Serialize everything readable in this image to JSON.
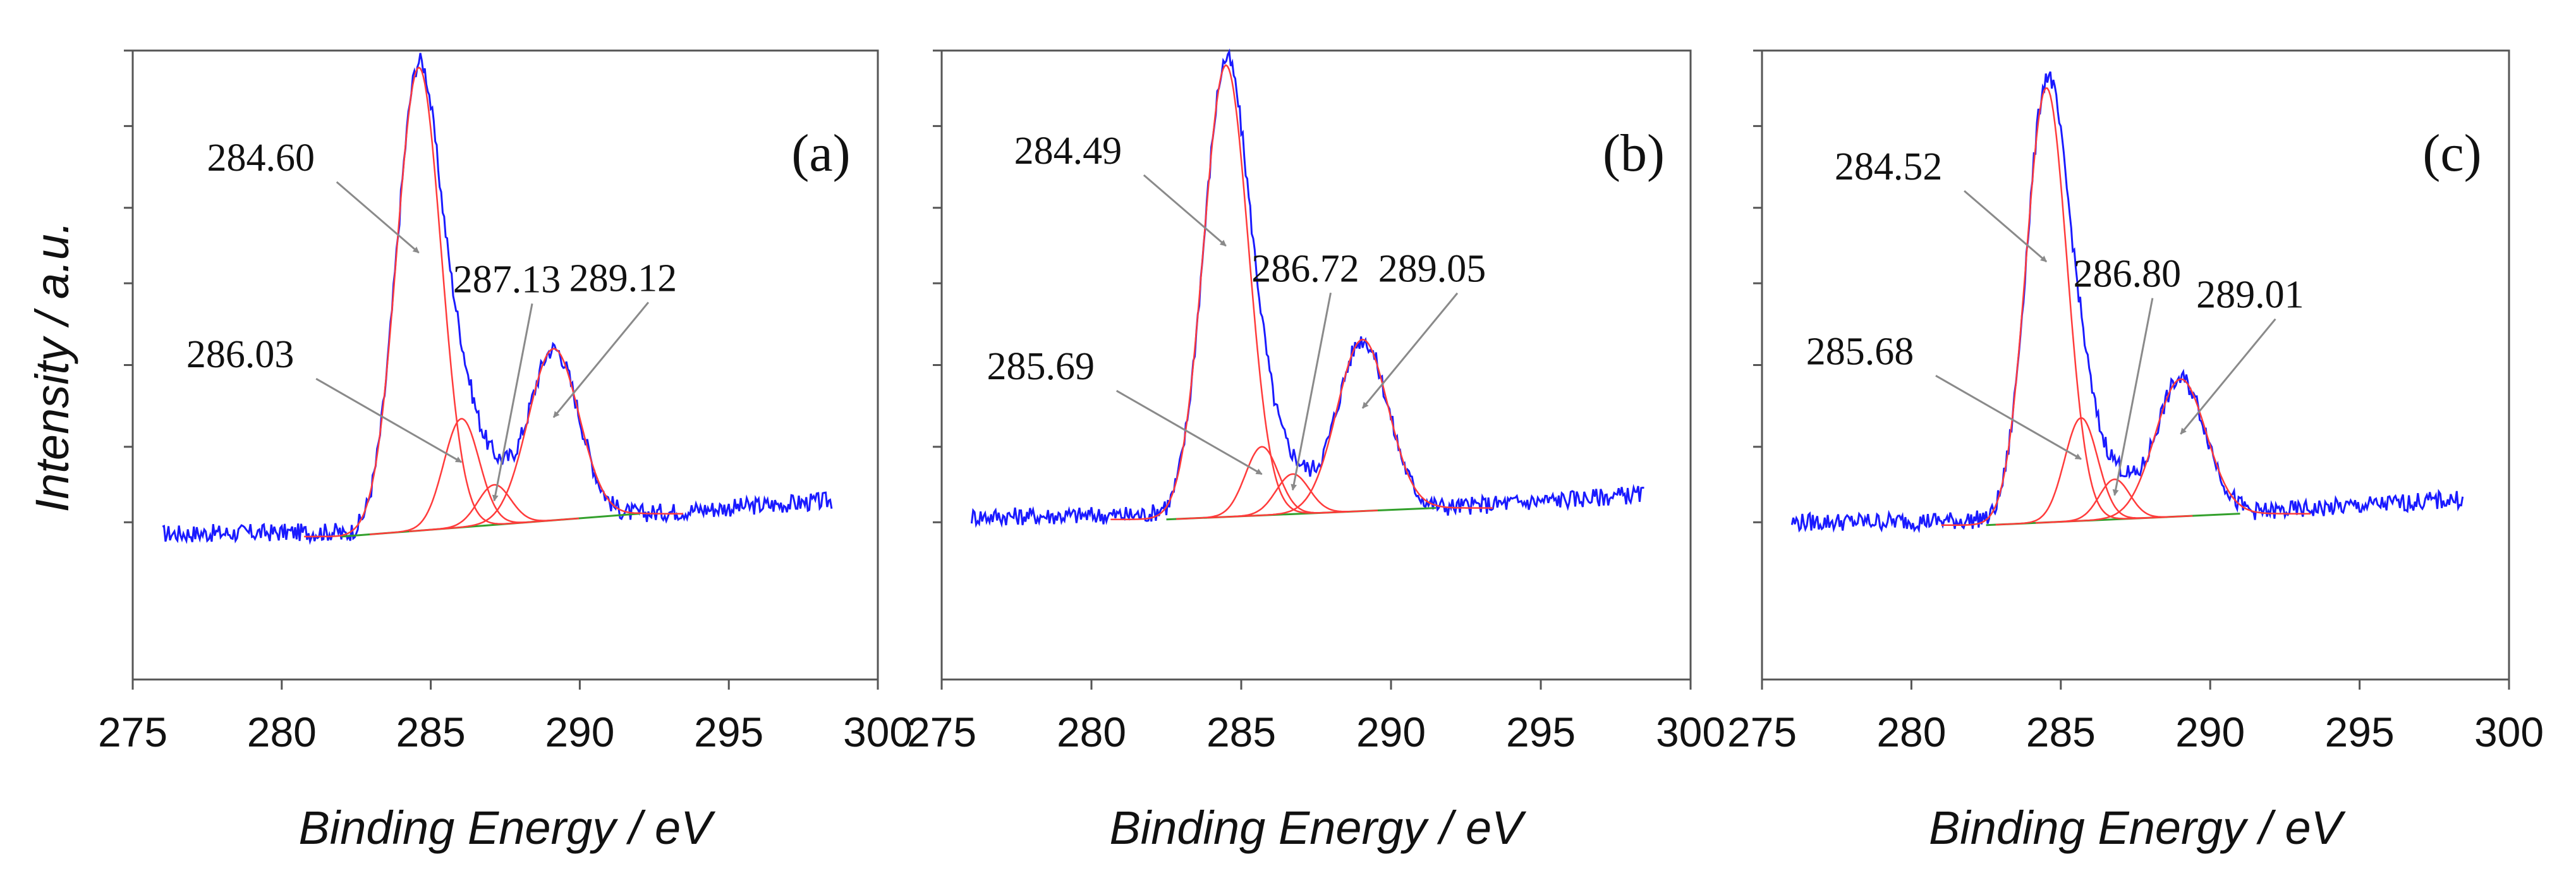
{
  "y_axis_label": "Intensity / a.u.",
  "colors": {
    "envelope": "#1a1aff",
    "components": "#ff3b3b",
    "background": "#33a02c",
    "axis": "#555555",
    "arrow": "#8a8a8a",
    "text": "#111111"
  },
  "chart_data": [
    {
      "type": "line",
      "panel_label": "(a)",
      "xlabel": "Binding Energy / eV",
      "ylabel": "Intensity / a.u.",
      "xlim": [
        275,
        300
      ],
      "ylim": [
        0,
        110
      ],
      "xticks": [
        275,
        280,
        285,
        290,
        295,
        300
      ],
      "envelope_range": [
        276,
        298.5
      ],
      "background_line": {
        "x": [
          282,
          292
        ],
        "y": [
          25,
          29
        ]
      },
      "components": [
        {
          "center": 284.6,
          "height": 81,
          "fwhm": 1.75
        },
        {
          "center": 286.03,
          "height": 19,
          "fwhm": 1.4
        },
        {
          "center": 287.13,
          "height": 7,
          "fwhm": 1.3
        },
        {
          "center": 289.12,
          "height": 30,
          "fwhm": 2.0
        }
      ],
      "annotations": [
        {
          "text": "284.60",
          "x": 284.6
        },
        {
          "text": "286.03",
          "x": 286.03
        },
        {
          "text": "287.13",
          "x": 287.13
        },
        {
          "text": "289.12",
          "x": 289.12
        }
      ]
    },
    {
      "type": "line",
      "panel_label": "(b)",
      "xlabel": "Binding Energy / eV",
      "ylabel": "Intensity / a.u.",
      "xlim": [
        275,
        300
      ],
      "ylim": [
        0,
        110
      ],
      "xticks": [
        275,
        280,
        285,
        290,
        295,
        300
      ],
      "envelope_range": [
        276,
        298.5
      ],
      "background_line": {
        "x": [
          282.5,
          291.5
        ],
        "y": [
          28,
          30
        ]
      },
      "components": [
        {
          "center": 284.49,
          "height": 79,
          "fwhm": 1.75
        },
        {
          "center": 285.69,
          "height": 12,
          "fwhm": 1.3
        },
        {
          "center": 286.72,
          "height": 7,
          "fwhm": 1.3
        },
        {
          "center": 289.05,
          "height": 30,
          "fwhm": 2.0
        }
      ],
      "annotations": [
        {
          "text": "284.49",
          "x": 284.49
        },
        {
          "text": "285.69",
          "x": 285.69
        },
        {
          "text": "286.72",
          "x": 286.72
        },
        {
          "text": "289.05",
          "x": 289.05
        }
      ]
    },
    {
      "type": "line",
      "panel_label": "(c)",
      "xlabel": "Binding Energy / eV",
      "ylabel": "Intensity / a.u.",
      "xlim": [
        275,
        300
      ],
      "ylim": [
        0,
        110
      ],
      "xticks": [
        275,
        280,
        285,
        290,
        295,
        300
      ],
      "envelope_range": [
        276,
        298.5
      ],
      "background_line": {
        "x": [
          282.5,
          291
        ],
        "y": [
          27,
          29
        ]
      },
      "components": [
        {
          "center": 284.52,
          "height": 76,
          "fwhm": 1.6
        },
        {
          "center": 285.68,
          "height": 18,
          "fwhm": 1.3
        },
        {
          "center": 286.8,
          "height": 7,
          "fwhm": 1.2
        },
        {
          "center": 289.01,
          "height": 24,
          "fwhm": 2.0
        }
      ],
      "annotations": [
        {
          "text": "284.52",
          "x": 284.52
        },
        {
          "text": "285.68",
          "x": 285.68
        },
        {
          "text": "286.80",
          "x": 286.8
        },
        {
          "text": "289.01",
          "x": 289.01
        }
      ]
    }
  ]
}
